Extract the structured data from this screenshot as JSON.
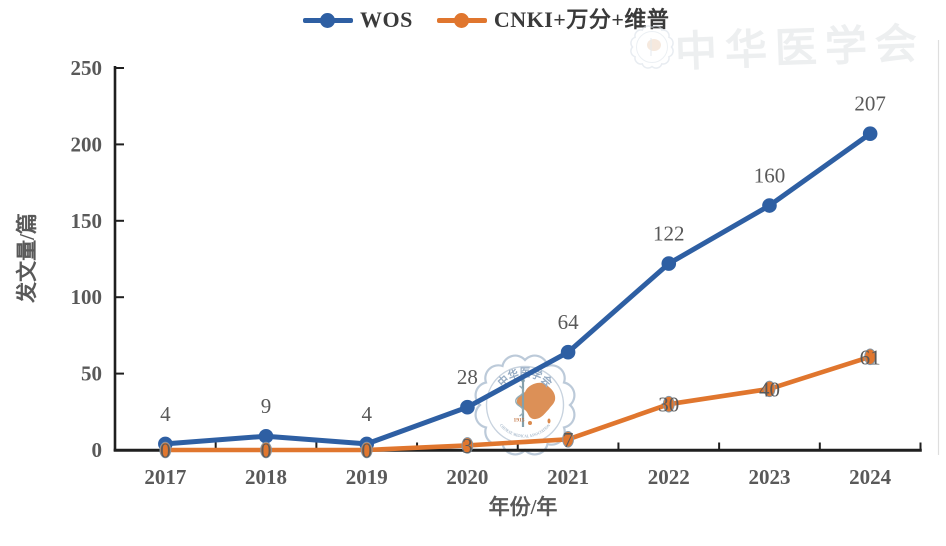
{
  "legend": {
    "items": [
      {
        "label": "WOS"
      },
      {
        "label": "CNKI+万分+维普"
      }
    ]
  },
  "chart_data": {
    "type": "line",
    "title": "",
    "categories": [
      "2017",
      "2018",
      "2019",
      "2020",
      "2021",
      "2022",
      "2023",
      "2024"
    ],
    "series": [
      {
        "name": "WOS",
        "color": "#2E5FA3",
        "marker": "circle",
        "values": [
          4,
          9,
          4,
          28,
          64,
          122,
          160,
          207
        ],
        "label_position": "above"
      },
      {
        "name": "CNKI+万分+维普",
        "color": "#E0762E",
        "marker": "circle",
        "values": [
          0,
          0,
          0,
          3,
          7,
          30,
          40,
          61
        ],
        "label_position": "center"
      }
    ],
    "xlabel": "年份/年",
    "ylabel": "发文量/篇",
    "ylim": [
      0,
      250
    ],
    "yticks": [
      0,
      50,
      100,
      150,
      200,
      250
    ],
    "grid": false,
    "legend_position": "top"
  },
  "watermark": {
    "center_logo": {
      "org_cn": "中华医学会",
      "org_en": "CHINESE MEDICAL ASSOCIATION",
      "founded": "1915"
    },
    "top_right_text": "中华医学会"
  },
  "colors": {
    "axis": "#1f1f1f",
    "tick_label": "#595959",
    "data_label": "#595959",
    "legend_text": "#3a3a3a",
    "watermark_ring": "#b7c6d6",
    "watermark_map": "#d8813f"
  }
}
